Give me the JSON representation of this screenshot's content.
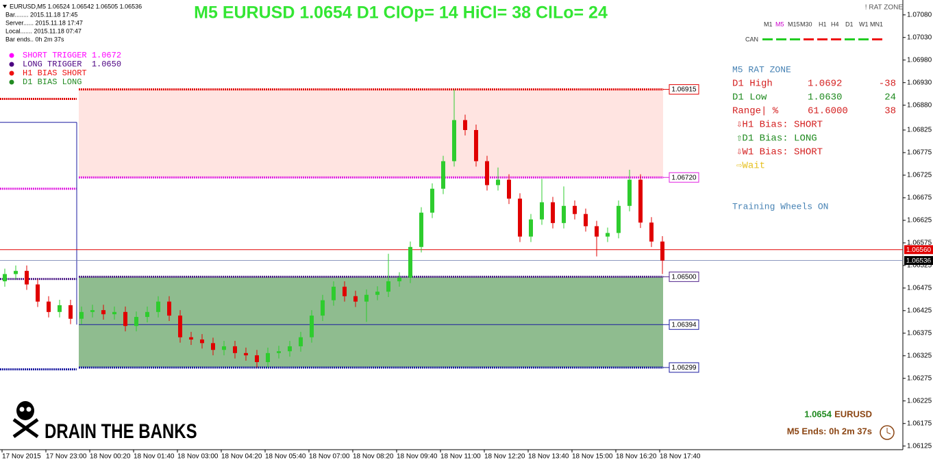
{
  "chart_data": {
    "type": "candlestick",
    "title": "M5 EURUSD 1.0654 D1 ClOp= 14 HiCl= 38 ClLo= 24",
    "ylim": [
      1.06117,
      1.07113
    ],
    "yticks": [
      {
        "value": 1.0708,
        "label": "1.07080"
      },
      {
        "value": 1.0703,
        "label": "1.07030"
      },
      {
        "value": 1.0698,
        "label": "1.06980"
      },
      {
        "value": 1.0693,
        "label": "1.06930"
      },
      {
        "value": 1.0688,
        "label": "1.06880"
      },
      1.06825,
      1.06775,
      1.06725,
      1.06675,
      1.06625,
      1.06575,
      1.06525,
      1.06475,
      1.06425,
      1.06375,
      1.06325,
      1.06275,
      1.06225,
      1.06175,
      1.06125
    ],
    "grid": false,
    "x_labels": [
      "17 Nov 2015",
      "17 Nov 23:00",
      "18 Nov 00:20",
      "18 Nov 01:40",
      "18 Nov 03:00",
      "18 Nov 04:20",
      "18 Nov 05:40",
      "18 Nov 07:00",
      "18 Nov 08:20",
      "18 Nov 09:40",
      "18 Nov 11:00",
      "18 Nov 12:20",
      "18 Nov 13:40",
      "18 Nov 15:00",
      "18 Nov 16:20",
      "18 Nov 17:40"
    ],
    "up_color": "#2ecc2e",
    "down_color": "#e00000",
    "open": [
      1.0649,
      1.06506,
      1.06513,
      1.06483,
      1.06445,
      1.06422,
      1.06437,
      1.06407,
      1.06422,
      1.06426,
      1.06417,
      1.06422,
      1.06391,
      1.06411,
      1.06422,
      1.06445,
      1.06414,
      1.06366,
      1.06361,
      1.06353,
      1.06338,
      1.06346,
      1.06331,
      1.06326,
      1.06311,
      1.06331,
      1.06335,
      1.06346,
      1.06366,
      1.06414,
      1.06448,
      1.06478,
      1.06457,
      1.06445,
      1.0646,
      1.06467,
      1.0649,
      1.06498,
      1.06566,
      1.06642,
      1.06695,
      1.06756,
      1.06847,
      1.06825,
      1.06756,
      1.06703,
      1.06715,
      1.06673,
      1.06589,
      1.06627,
      1.06665,
      1.06619,
      1.06657,
      1.06639,
      1.06612,
      1.06589,
      1.06597,
      1.06657,
      1.06715,
      1.0662,
      1.06578
    ],
    "high": [
      1.06518,
      1.06525,
      1.06525,
      1.06495,
      1.06457,
      1.06449,
      1.06449,
      1.06434,
      1.06438,
      1.06438,
      1.06434,
      1.06434,
      1.06423,
      1.06434,
      1.06457,
      1.06457,
      1.06426,
      1.06378,
      1.06373,
      1.06365,
      1.06358,
      1.06358,
      1.06343,
      1.06338,
      1.06343,
      1.06347,
      1.06358,
      1.06378,
      1.06426,
      1.0646,
      1.0649,
      1.0649,
      1.06469,
      1.06472,
      1.06479,
      1.06551,
      1.0651,
      1.06578,
      1.06654,
      1.06707,
      1.06768,
      1.06915,
      1.06859,
      1.06837,
      1.06768,
      1.06742,
      1.06727,
      1.06685,
      1.06639,
      1.06717,
      1.06677,
      1.067,
      1.06669,
      1.06651,
      1.06624,
      1.06609,
      1.06669,
      1.06737,
      1.06727,
      1.06632,
      1.0659
    ],
    "low": [
      1.06478,
      1.06494,
      1.06471,
      1.06433,
      1.0641,
      1.0641,
      1.06395,
      1.06395,
      1.0641,
      1.06405,
      1.06405,
      1.06379,
      1.06379,
      1.06399,
      1.0641,
      1.06402,
      1.06354,
      1.06349,
      1.06341,
      1.06326,
      1.06326,
      1.06319,
      1.06314,
      1.06299,
      1.06299,
      1.06319,
      1.06323,
      1.06334,
      1.06354,
      1.06402,
      1.06436,
      1.06445,
      1.06433,
      1.064,
      1.06448,
      1.06455,
      1.06478,
      1.06486,
      1.06554,
      1.0663,
      1.06683,
      1.06744,
      1.06813,
      1.06744,
      1.06691,
      1.06691,
      1.06661,
      1.06577,
      1.06577,
      1.06615,
      1.06607,
      1.06607,
      1.06627,
      1.066,
      1.06545,
      1.06577,
      1.06585,
      1.06645,
      1.06608,
      1.06566,
      1.06506
    ],
    "close": [
      1.06506,
      1.06513,
      1.06483,
      1.06445,
      1.06422,
      1.06437,
      1.06407,
      1.06422,
      1.06426,
      1.06417,
      1.06422,
      1.06391,
      1.06411,
      1.06422,
      1.06445,
      1.06414,
      1.06366,
      1.06361,
      1.06353,
      1.06338,
      1.06346,
      1.06331,
      1.06326,
      1.06311,
      1.06331,
      1.06335,
      1.06346,
      1.06366,
      1.06414,
      1.06448,
      1.06478,
      1.06457,
      1.06445,
      1.0646,
      1.06467,
      1.0649,
      1.06498,
      1.06566,
      1.06642,
      1.06695,
      1.06756,
      1.06847,
      1.06825,
      1.06756,
      1.06703,
      1.06715,
      1.06673,
      1.06589,
      1.06627,
      1.06665,
      1.06619,
      1.06657,
      1.06639,
      1.06612,
      1.06589,
      1.06597,
      1.06657,
      1.06715,
      1.0662,
      1.06578,
      1.06536
    ],
    "zones": [
      {
        "from": 1.0672,
        "to": 1.06915,
        "color": "#ffe4e1"
      },
      {
        "from": 1.06299,
        "to": 1.065,
        "color": "#8fbc8f"
      }
    ],
    "levels": [
      {
        "value": 1.06915,
        "label": "1.06915",
        "color": "#e00000",
        "style": "dotted",
        "box": "chart"
      },
      {
        "value": 1.0672,
        "label": "1.06720",
        "color": "#e020e0",
        "style": "dotted",
        "box": "chart"
      },
      {
        "value": 1.0656,
        "label": "1.06560",
        "color": "#e00000",
        "style": "full",
        "box": "axis"
      },
      {
        "value": 1.06536,
        "label": "1.06536",
        "color": "#000000",
        "style": "full",
        "box": "axis"
      },
      {
        "value": 1.065,
        "label": "1.06500",
        "color": "#50208a",
        "style": "dotted",
        "box": "chart"
      },
      {
        "value": 1.06394,
        "label": "1.06394",
        "color": "#1a1aa0",
        "style": "solid",
        "box": "chart"
      },
      {
        "value": 1.06299,
        "label": "1.06299",
        "color": "#1a1aa0",
        "style": "dotted",
        "box": "chart"
      }
    ],
    "prior_levels": [
      {
        "value": 1.06894,
        "color": "#e00000"
      },
      {
        "value": 1.06695,
        "color": "#e020e0"
      },
      {
        "value": 1.06495,
        "color": "#50208a"
      },
      {
        "value": 1.06295,
        "color": "#1a1aa0"
      }
    ],
    "prior_range_line": {
      "from": 1.06842,
      "to": 1.06394,
      "color": "#1a1aa0"
    }
  },
  "info": {
    "symbol": "EURUSD,M5  1.06524 1.06542 1.06505 1.06536",
    "lines": [
      "Bar........ 2015.11.18 17:45",
      "Server...... 2015.11.18 17:47",
      "Local....... 2015.11.18 07:47",
      "Bar ends.. 0h 2m 37s"
    ]
  },
  "indicator_name": "! RAT ZONE",
  "timeframes": [
    "M1",
    "M5",
    "M15",
    "M30",
    "H1",
    "H4",
    "D1",
    "W1",
    "MN1"
  ],
  "active_timeframe": "M5",
  "can": {
    "label": "CAN",
    "colors": [
      "#22cc22",
      "#22cc22",
      "#22cc22",
      "#ee1111",
      "#ee1111",
      "#ee1111",
      "#22cc22",
      "#22cc22",
      "#ee1111"
    ]
  },
  "legend": [
    {
      "text": "SHORT TRIGGER 1.0672",
      "color": "#ff00ff"
    },
    {
      "text": "LONG TRIGGER  1.0650",
      "color": "#4b0082"
    },
    {
      "text": "H1 BIAS SHORT",
      "color": "#ee1111"
    },
    {
      "text": "D1 BIAS LONG",
      "color": "#228b22"
    }
  ],
  "panel": {
    "title": "M5 RAT ZONE",
    "rows": [
      {
        "cells": [
          "D1 High",
          "1.0692",
          "-38"
        ],
        "color": "#d42020"
      },
      {
        "cells": [
          "D1 Low",
          "1.0630",
          "24"
        ],
        "color": "#1f8a1f"
      },
      {
        "cells": [
          "Range| %",
          "61.6000",
          "38"
        ],
        "color": "#d42020"
      }
    ],
    "bias": [
      {
        "text": "⇩H1 Bias: SHORT",
        "color": "#d42020"
      },
      {
        "text": "⇧D1 Bias: LONG",
        "color": "#1f8a1f"
      },
      {
        "text": "⇩W1 Bias: SHORT",
        "color": "#d42020"
      },
      {
        "text": "⇨Wait",
        "color": "#e6c020"
      }
    ],
    "note": "Training Wheels ON"
  },
  "footer": {
    "price": "1.0654",
    "symbol": "EURUSD",
    "ends": "M5 Ends: 0h 2m 37s",
    "slogan": "DRAIN THE BANKS"
  }
}
